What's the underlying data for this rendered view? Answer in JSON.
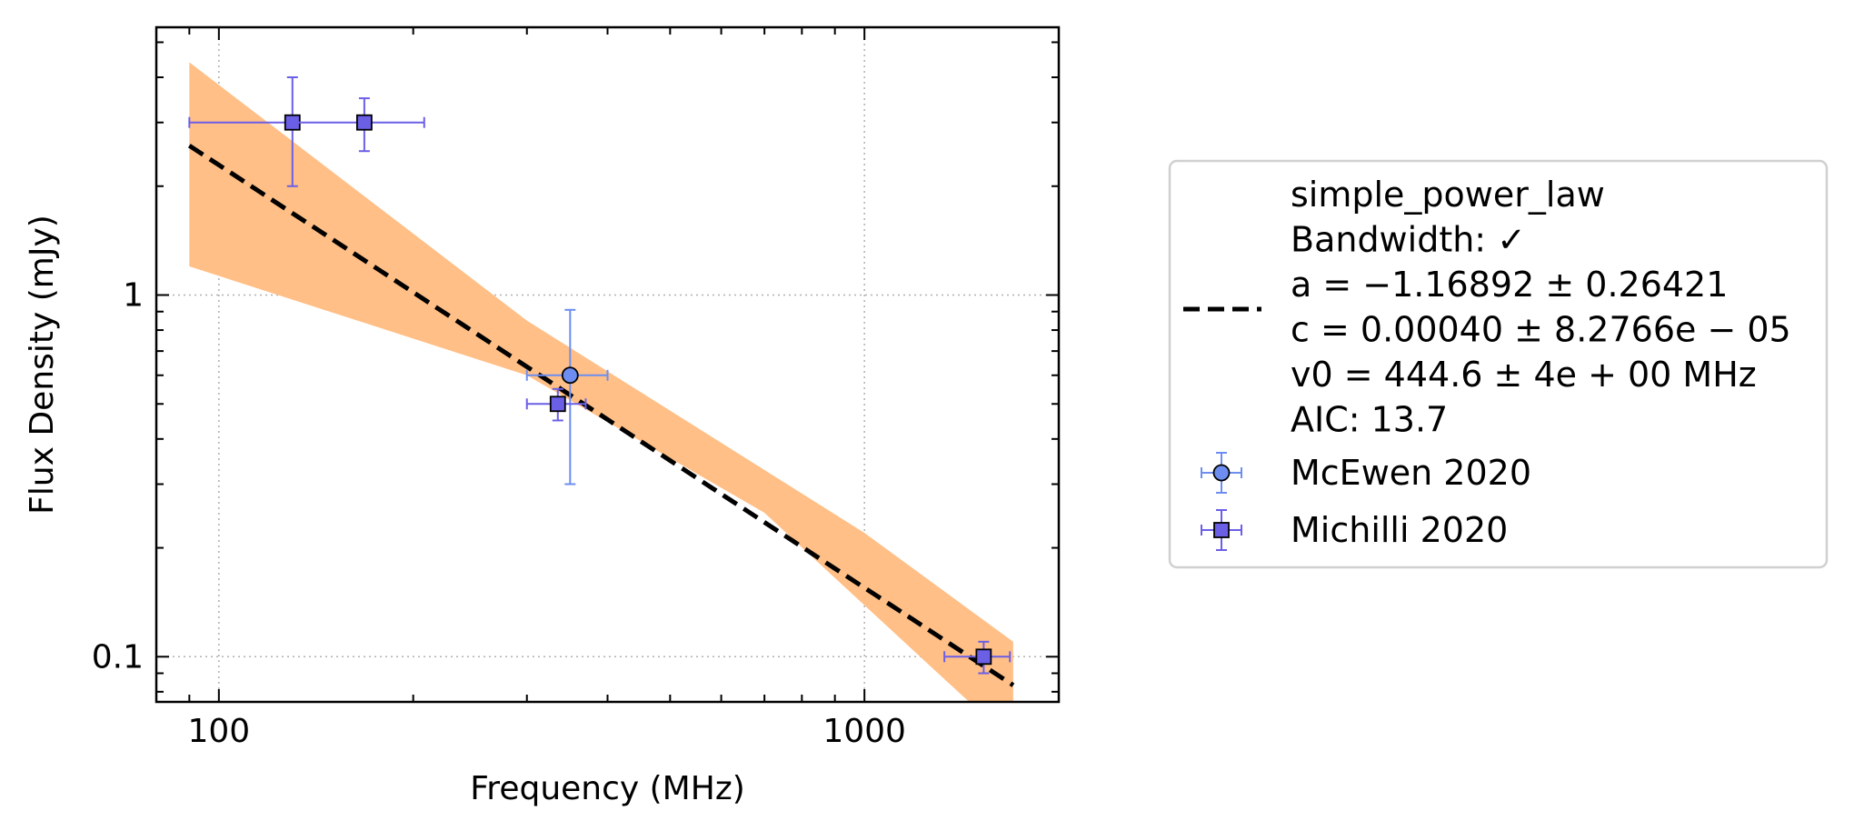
{
  "chart_data": {
    "type": "scatter",
    "xscale": "log",
    "yscale": "log",
    "xlim": [
      80,
      2000
    ],
    "ylim": [
      0.075,
      5.5
    ],
    "xlabel": "Frequency (MHz)",
    "ylabel": "Flux Density (mJy)",
    "x_ticks": [
      {
        "value": 100,
        "label": "100"
      },
      {
        "value": 1000,
        "label": "1000"
      }
    ],
    "y_ticks": [
      {
        "value": 0.1,
        "label": "0.1"
      },
      {
        "value": 1,
        "label": "1"
      }
    ],
    "grid": true,
    "legend_position": "right, outside plot",
    "colors": {
      "band": "#ffbf86",
      "fit_line": "#000000",
      "mcewen": "#6d8ef0",
      "michilli": "#6b5fe6"
    },
    "fit": {
      "label_lines": [
        "simple_power_law",
        "Bandwidth: ✓",
        "a = −1.16892 ± 0.26421",
        "c = 0.00040 ± 8.2766e − 05",
        "v0 = 444.6 ± 4e + 00 MHz",
        "AIC: 13.7"
      ],
      "a": -1.16892,
      "c": 0.0004,
      "v0": 444.6,
      "x_range": [
        90,
        1700
      ],
      "band_upper": [
        {
          "x": 90,
          "y": 4.4
        },
        {
          "x": 300,
          "y": 0.85
        },
        {
          "x": 1000,
          "y": 0.22
        },
        {
          "x": 1700,
          "y": 0.11
        }
      ],
      "band_lower": [
        {
          "x": 90,
          "y": 1.2
        },
        {
          "x": 300,
          "y": 0.6
        },
        {
          "x": 700,
          "y": 0.25
        },
        {
          "x": 1300,
          "y": 0.09
        },
        {
          "x": 1700,
          "y": 0.058
        }
      ]
    },
    "series": [
      {
        "name": "McEwen 2020",
        "marker": "circle",
        "points": [
          {
            "x": 350,
            "y": 0.6,
            "xerr": [
              50,
              50
            ],
            "yerr": [
              0.3,
              0.31
            ]
          }
        ]
      },
      {
        "name": "Michilli 2020",
        "marker": "square",
        "points": [
          {
            "x": 130,
            "y": 3.0,
            "xerr": [
              40,
              0
            ],
            "yerr": [
              1.0,
              1.0
            ]
          },
          {
            "x": 168,
            "y": 3.0,
            "xerr": [
              40,
              40
            ],
            "yerr": [
              0.5,
              0.5
            ]
          },
          {
            "x": 335,
            "y": 0.5,
            "xerr": [
              35,
              35
            ],
            "yerr": [
              0.05,
              0.05
            ]
          },
          {
            "x": 1530,
            "y": 0.1,
            "xerr": [
              200,
              150
            ],
            "yerr": [
              0.01,
              0.01
            ]
          }
        ]
      }
    ]
  }
}
